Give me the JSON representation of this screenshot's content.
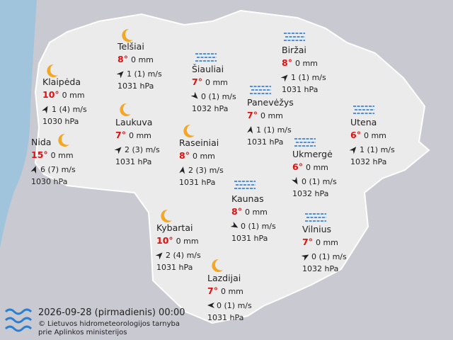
{
  "stations": [
    {
      "name": "Telšiai",
      "temp": "8°",
      "precip": "0 mm",
      "wind": "1 (1) m/s",
      "pressure": "1031 hPa"
    },
    {
      "name": "Klaipėda",
      "temp": "10°",
      "precip": "0 mm",
      "wind": "1 (4) m/s",
      "pressure": "1030 hPa"
    },
    {
      "name": "Nida",
      "temp": "15°",
      "precip": "0 mm",
      "wind": "6 (7) m/s",
      "pressure": "1030 hPa"
    },
    {
      "name": "Šiauliai",
      "temp": "7°",
      "precip": "0 mm",
      "wind": "0 (1) m/s",
      "pressure": "1032 hPa"
    },
    {
      "name": "Biržai",
      "temp": "8°",
      "precip": "0 mm",
      "wind": "1 (1) m/s",
      "pressure": "1031 hPa"
    },
    {
      "name": "Panevėžys",
      "temp": "7°",
      "precip": "0 mm",
      "wind": "1 (1) m/s",
      "pressure": "1031 hPa"
    },
    {
      "name": "Utena",
      "temp": "6°",
      "precip": "0 mm",
      "wind": "1 (1) m/s",
      "pressure": "1032 hPa"
    },
    {
      "name": "Laukuva",
      "temp": "7°",
      "precip": "0 mm",
      "wind": "2 (3) m/s",
      "pressure": "1031 hPa"
    },
    {
      "name": "Raseiniai",
      "temp": "8°",
      "precip": "0 mm",
      "wind": "2 (3) m/s",
      "pressure": "1031 hPa"
    },
    {
      "name": "Ukmergė",
      "temp": "6°",
      "precip": "0 mm",
      "wind": "0 (1) m/s",
      "pressure": "1032 hPa"
    },
    {
      "name": "Kaunas",
      "temp": "8°",
      "precip": "0 mm",
      "wind": "0 (1) m/s",
      "pressure": "1031 hPa"
    },
    {
      "name": "Vilnius",
      "temp": "7°",
      "precip": "0 mm",
      "wind": "0 (1) m/s",
      "pressure": "1032 hPa"
    },
    {
      "name": "Kybartai",
      "temp": "10°",
      "precip": "0 mm",
      "wind": "2 (4) m/s",
      "pressure": "1031 hPa"
    },
    {
      "name": "Lazdijai",
      "temp": "7°",
      "precip": "0 mm",
      "wind": "0 (1) m/s",
      "pressure": "1031 hPa"
    }
  ],
  "footer": {
    "datetime": "2026-09-28 (pirmadienis) 00:00",
    "credit_line1": "© Lietuvos hidrometeorologijos tarnyba",
    "credit_line2": "prie Aplinkos ministerijos"
  }
}
